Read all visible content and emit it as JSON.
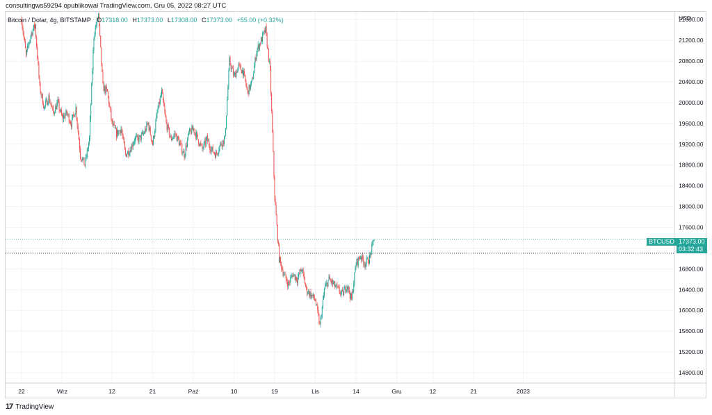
{
  "header": {
    "published_line": "consultingws59294 opublikował TradingView.com, Gru 05, 2022 08:27 UTC"
  },
  "symbol_bar": {
    "title": "Bitcoin / Dolar, 4g, BITSTAMP",
    "o_label": "O",
    "o_value": "17318.00",
    "h_label": "H",
    "h_value": "17373.00",
    "l_label": "L",
    "l_value": "17308.00",
    "c_label": "C",
    "c_value": "17373.00",
    "change": "+55.00 (+0.32%)"
  },
  "badges": {
    "symbol": "BTCUSD",
    "last_price": "17373.00",
    "countdown": "03:32:43"
  },
  "footer": {
    "logo_mark": "17",
    "brand": "TradingView"
  },
  "colors": {
    "up": "#26a69a",
    "down": "#ef5350",
    "grid": "#f0f3fa",
    "axis_text": "#131722",
    "last_line": "#26a69a",
    "prev_line": "#131722"
  },
  "chart_data": {
    "type": "candlestick",
    "currency_label": "USD",
    "ylim": [
      14600,
      21750
    ],
    "y_ticks": [
      14800,
      15200,
      15600,
      16000,
      16400,
      16800,
      17200,
      17600,
      18000,
      18400,
      18800,
      19200,
      19600,
      20000,
      20400,
      20800,
      21200,
      21600
    ],
    "y_tick_labels": [
      "14800.00",
      "15200.00",
      "15600.00",
      "16000.00",
      "16400.00",
      "16800.00",
      "17200.00",
      "17600.00",
      "18000.00",
      "18400.00",
      "18800.00",
      "19200.00",
      "19600.00",
      "20000.00",
      "20400.00",
      "20800.00",
      "21200.00",
      "21600.00"
    ],
    "x_tick_labels": [
      "22",
      "Wrz",
      "12",
      "21",
      "Paź",
      "10",
      "19",
      "Lis",
      "14",
      "Gru",
      "12",
      "21",
      "2023"
    ],
    "x_ticks_day_offset": [
      0,
      9,
      20,
      29,
      38,
      47,
      56,
      65,
      74,
      83,
      91,
      100,
      111
    ],
    "last_price": 17373,
    "reference_price": 17100,
    "grid": true,
    "path": [
      [
        0,
        21600
      ],
      [
        1,
        20900
      ],
      [
        2,
        21300
      ],
      [
        3,
        21500
      ],
      [
        4,
        20300
      ],
      [
        5,
        19900
      ],
      [
        6,
        20100
      ],
      [
        7,
        19800
      ],
      [
        8,
        20000
      ],
      [
        9,
        19700
      ],
      [
        10,
        19800
      ],
      [
        11,
        19600
      ],
      [
        12,
        19900
      ],
      [
        13,
        19000
      ],
      [
        14,
        18800
      ],
      [
        15,
        19300
      ],
      [
        16,
        21300
      ],
      [
        17,
        21700
      ],
      [
        18,
        20300
      ],
      [
        19,
        20200
      ],
      [
        20,
        19600
      ],
      [
        21,
        19400
      ],
      [
        22,
        19500
      ],
      [
        23,
        19000
      ],
      [
        24,
        19100
      ],
      [
        25,
        19300
      ],
      [
        26,
        19300
      ],
      [
        27,
        19400
      ],
      [
        28,
        19600
      ],
      [
        29,
        19200
      ],
      [
        30,
        19800
      ],
      [
        31,
        20200
      ],
      [
        32,
        19600
      ],
      [
        33,
        19300
      ],
      [
        34,
        19400
      ],
      [
        35,
        19200
      ],
      [
        36,
        19000
      ],
      [
        37,
        19400
      ],
      [
        38,
        19500
      ],
      [
        39,
        19300
      ],
      [
        40,
        19100
      ],
      [
        41,
        19300
      ],
      [
        42,
        19100
      ],
      [
        43,
        19000
      ],
      [
        44,
        19200
      ],
      [
        45,
        19300
      ],
      [
        46,
        20800
      ],
      [
        47,
        20500
      ],
      [
        48,
        20700
      ],
      [
        49,
        20600
      ],
      [
        50,
        20200
      ],
      [
        51,
        20400
      ],
      [
        52,
        21000
      ],
      [
        53,
        21200
      ],
      [
        54,
        21400
      ],
      [
        55,
        20600
      ],
      [
        56,
        18200
      ],
      [
        57,
        17000
      ],
      [
        58,
        16700
      ],
      [
        59,
        16500
      ],
      [
        60,
        16700
      ],
      [
        61,
        16600
      ],
      [
        62,
        16800
      ],
      [
        63,
        16400
      ],
      [
        64,
        16300
      ],
      [
        65,
        16200
      ],
      [
        66,
        15700
      ],
      [
        67,
        16400
      ],
      [
        68,
        16600
      ],
      [
        69,
        16500
      ],
      [
        70,
        16400
      ],
      [
        71,
        16300
      ],
      [
        72,
        16500
      ],
      [
        73,
        16200
      ],
      [
        74,
        16900
      ],
      [
        75,
        17050
      ],
      [
        76,
        16900
      ],
      [
        77,
        17000
      ],
      [
        78,
        17373
      ]
    ]
  }
}
